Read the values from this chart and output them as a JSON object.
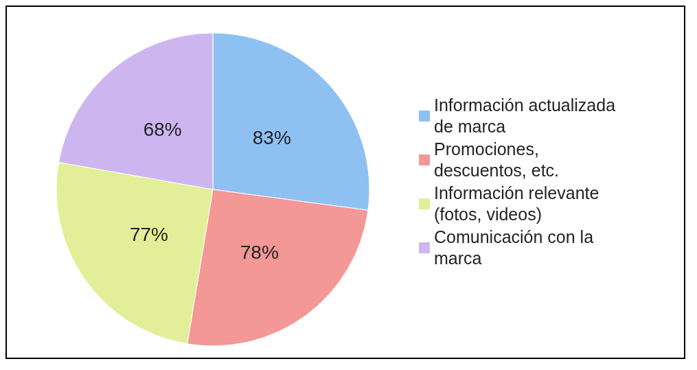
{
  "chart_data": {
    "type": "pie",
    "categories": [
      "Información actualizada de marca",
      "Promociones, descuentos, etc.",
      "Información relevante (fotos, videos)",
      "Comunicación con la marca"
    ],
    "values": [
      83,
      78,
      77,
      68
    ],
    "value_labels": [
      "83%",
      "78%",
      "77%",
      "68%"
    ],
    "colors": [
      "#8fc0f2",
      "#f39797",
      "#e3ef98",
      "#cdb6f0"
    ],
    "legend": "right"
  }
}
